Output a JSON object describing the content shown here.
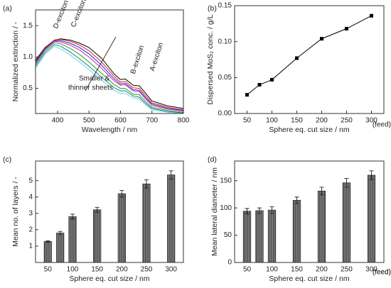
{
  "chart_data": [
    {
      "type": "line",
      "panel_label": "(a)",
      "x_label": "Wavelength / nm",
      "y_label": "Normalized extinction / -",
      "annotations": [
        "D-exciton",
        "C-exciton",
        "B-exciton",
        "A-exciton",
        "Smaller &",
        "thinner sheets"
      ],
      "xlim": [
        330,
        800
      ],
      "xticks": [
        400,
        500,
        600,
        700,
        800
      ],
      "ylim": [
        0.1,
        1.75
      ],
      "yticks": [
        0.5,
        {
          "value": 1.0,
          "label": "1.0"
        },
        1.5
      ],
      "x": [
        330,
        360,
        390,
        410,
        440,
        470,
        500,
        540,
        580,
        600,
        615,
        640,
        660,
        680,
        700,
        750,
        800
      ],
      "series": [
        {
          "color": "#000000",
          "values": [
            0.95,
            1.15,
            1.27,
            1.29,
            1.27,
            1.22,
            1.15,
            0.98,
            0.73,
            0.64,
            0.65,
            0.55,
            0.54,
            0.42,
            0.3,
            0.22,
            0.18
          ]
        },
        {
          "color": "#e0201a",
          "values": [
            0.93,
            1.14,
            1.27,
            1.28,
            1.25,
            1.19,
            1.1,
            0.92,
            0.69,
            0.6,
            0.61,
            0.51,
            0.5,
            0.38,
            0.27,
            0.2,
            0.16
          ]
        },
        {
          "color": "#2030d0",
          "values": [
            0.92,
            1.13,
            1.26,
            1.26,
            1.22,
            1.15,
            1.05,
            0.87,
            0.65,
            0.57,
            0.58,
            0.48,
            0.47,
            0.35,
            0.25,
            0.18,
            0.15
          ]
        },
        {
          "color": "#d020c0",
          "values": [
            0.9,
            1.12,
            1.25,
            1.24,
            1.19,
            1.11,
            1.0,
            0.82,
            0.62,
            0.55,
            0.56,
            0.46,
            0.45,
            0.33,
            0.23,
            0.17,
            0.14
          ]
        },
        {
          "color": "#20a020",
          "values": [
            0.88,
            1.1,
            1.23,
            1.21,
            1.14,
            1.04,
            0.92,
            0.74,
            0.56,
            0.5,
            0.5,
            0.41,
            0.4,
            0.29,
            0.2,
            0.15,
            0.12
          ]
        },
        {
          "color": "#108080",
          "values": [
            0.85,
            1.07,
            1.2,
            1.17,
            1.08,
            0.97,
            0.85,
            0.68,
            0.51,
            0.46,
            0.46,
            0.38,
            0.36,
            0.26,
            0.18,
            0.13,
            0.11
          ]
        },
        {
          "color": "#70d0e0",
          "values": [
            0.82,
            1.04,
            1.17,
            1.13,
            1.03,
            0.92,
            0.8,
            0.63,
            0.47,
            0.42,
            0.42,
            0.35,
            0.33,
            0.24,
            0.16,
            0.12,
            0.1
          ]
        }
      ]
    },
    {
      "type": "line",
      "marker": "square",
      "panel_label": "(b)",
      "x_label": "Sphere eq. cut size / nm",
      "y_label": "Dispersed MoS₂ conc. / g/L",
      "annotations": [
        "(feed)"
      ],
      "xlim": [
        25,
        325
      ],
      "xticks": [
        50,
        100,
        150,
        200,
        250,
        300
      ],
      "ylim": [
        0,
        0.15
      ],
      "yticks": [
        {
          "value": 0,
          "label": "0.00"
        },
        0.05,
        {
          "value": 0.1,
          "label": "0.10"
        },
        0.15
      ],
      "x": [
        50,
        75,
        100,
        150,
        200,
        250,
        300
      ],
      "series": [
        {
          "color": "#000000",
          "values": [
            0.026,
            0.04,
            0.047,
            0.077,
            0.104,
            0.118,
            0.136
          ]
        }
      ]
    },
    {
      "type": "bar",
      "panel_label": "(c)",
      "x_label": "Sphere eq. cut size / nm",
      "y_label": "Mean no. of layers / -",
      "annotations": [
        "(feed)"
      ],
      "xlim": [
        25,
        325
      ],
      "xticks": [
        50,
        100,
        150,
        200,
        250,
        300
      ],
      "ylim": [
        0,
        6.2
      ],
      "yticks": [
        1,
        2,
        3,
        4,
        5
      ],
      "x": [
        50,
        75,
        100,
        150,
        200,
        250,
        300
      ],
      "color": "#6a6a6a",
      "values": [
        1.28,
        1.8,
        2.8,
        3.22,
        4.2,
        4.8,
        5.35
      ],
      "errors": [
        0.05,
        0.1,
        0.15,
        0.15,
        0.2,
        0.25,
        0.25
      ]
    },
    {
      "type": "bar",
      "panel_label": "(d)",
      "x_label": "Sphere eq. cut size / nm",
      "y_label": "Mean lateral diameter / nm",
      "annotations": [
        "(feed)"
      ],
      "xlim": [
        25,
        325
      ],
      "xticks": [
        50,
        100,
        150,
        200,
        250,
        300
      ],
      "ylim": [
        0,
        186
      ],
      "yticks": [
        0,
        50,
        100,
        150
      ],
      "x": [
        50,
        75,
        100,
        150,
        200,
        250,
        300
      ],
      "color": "#6a6a6a",
      "values": [
        94,
        95,
        96,
        114,
        131,
        146,
        160
      ],
      "errors": [
        5,
        5,
        6,
        6,
        7,
        8,
        8
      ]
    }
  ]
}
